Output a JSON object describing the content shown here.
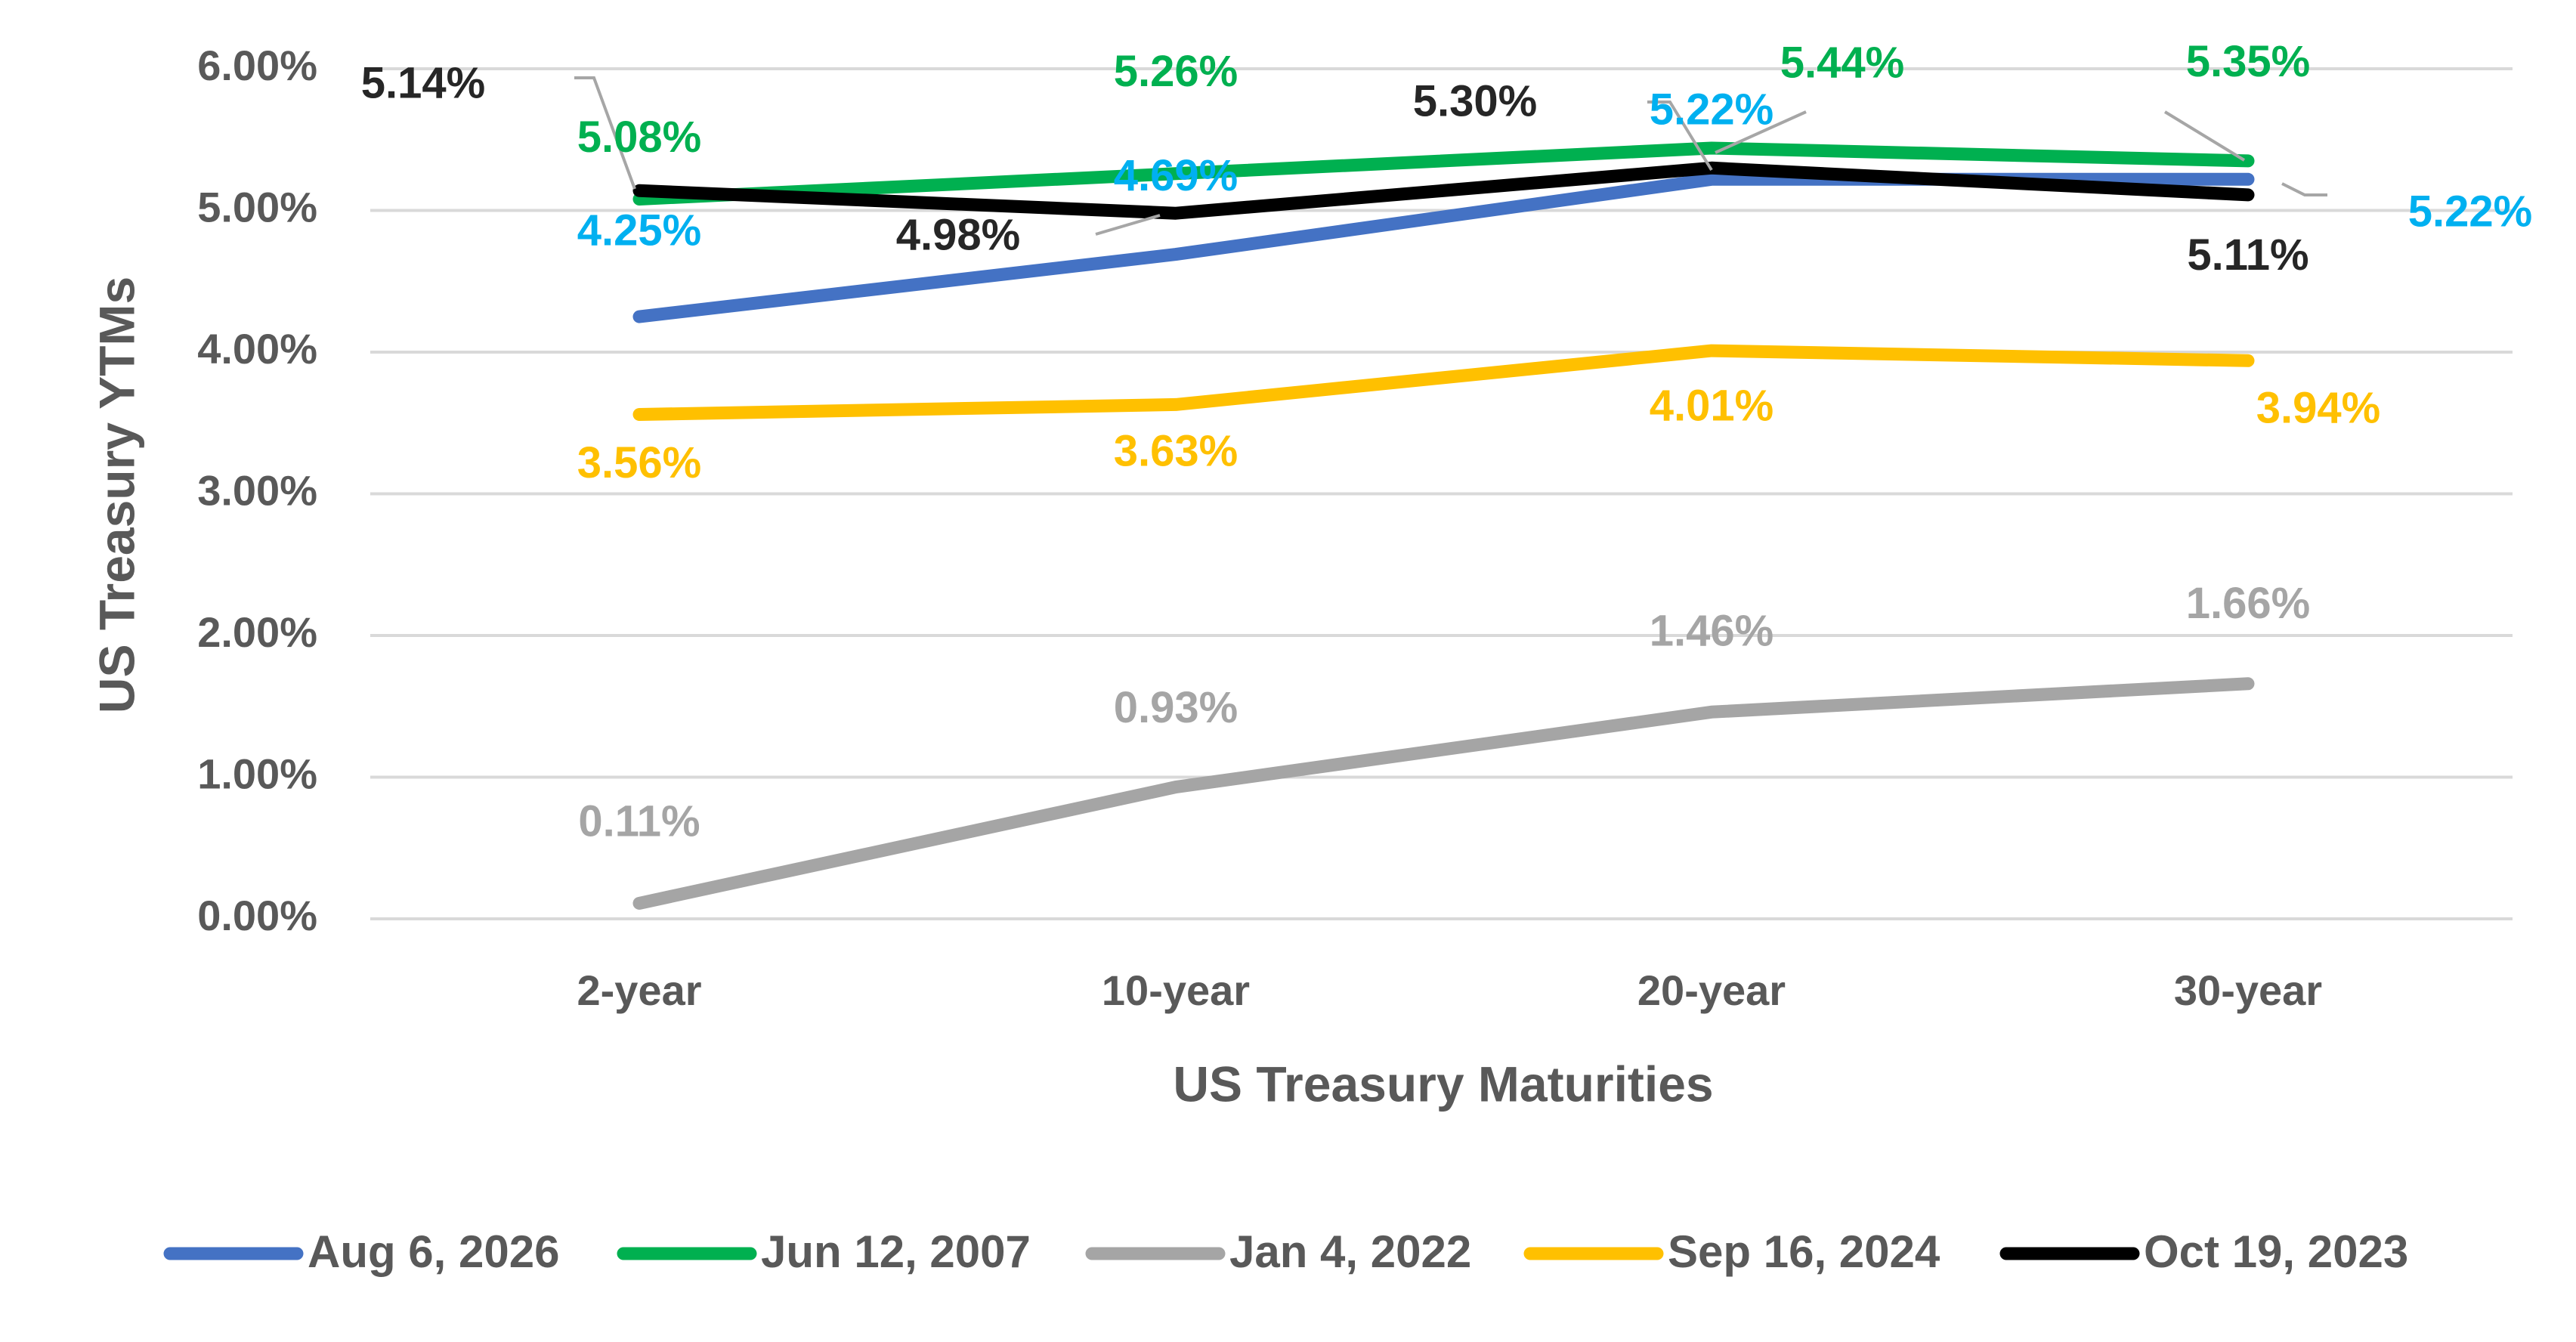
{
  "chart_data": {
    "type": "line",
    "categories": [
      "2-year",
      "10-year",
      "20-year",
      "30-year"
    ],
    "xlabel": "US Treasury Maturities",
    "ylabel": "US Treasury YTMs",
    "ylim": [
      0,
      6
    ],
    "yticks": [
      "0.00%",
      "1.00%",
      "2.00%",
      "3.00%",
      "4.00%",
      "5.00%",
      "6.00%"
    ],
    "grid": true,
    "legend_position": "bottom",
    "series": [
      {
        "name": "Aug 6, 2026",
        "color": "#4472C4",
        "label_color": "#00B0F0",
        "values": [
          4.25,
          4.69,
          5.22,
          5.22
        ],
        "labels": [
          "4.25%",
          "4.69%",
          "5.22%",
          "5.22%"
        ]
      },
      {
        "name": "Jun 12, 2007",
        "color": "#00B050",
        "label_color": "#00B050",
        "values": [
          5.08,
          5.26,
          5.44,
          5.35
        ],
        "labels": [
          "5.08%",
          "5.26%",
          "5.44%",
          "5.35%"
        ]
      },
      {
        "name": "Jan 4, 2022",
        "color": "#A5A5A5",
        "label_color": "#A5A5A5",
        "values": [
          0.11,
          0.93,
          1.46,
          1.66
        ],
        "labels": [
          "0.11%",
          "0.93%",
          "1.46%",
          "1.66%"
        ]
      },
      {
        "name": "Sep 16, 2024",
        "color": "#FFC000",
        "label_color": "#FFC000",
        "values": [
          3.56,
          3.63,
          4.01,
          3.94
        ],
        "labels": [
          "3.56%",
          "3.63%",
          "4.01%",
          "3.94%"
        ]
      },
      {
        "name": "Oct 19, 2023",
        "color": "#000000",
        "label_color": "#262626",
        "values": [
          5.14,
          4.98,
          5.3,
          5.11
        ],
        "labels": [
          "5.14%",
          "4.98%",
          "5.30%",
          "5.11%"
        ]
      }
    ]
  }
}
